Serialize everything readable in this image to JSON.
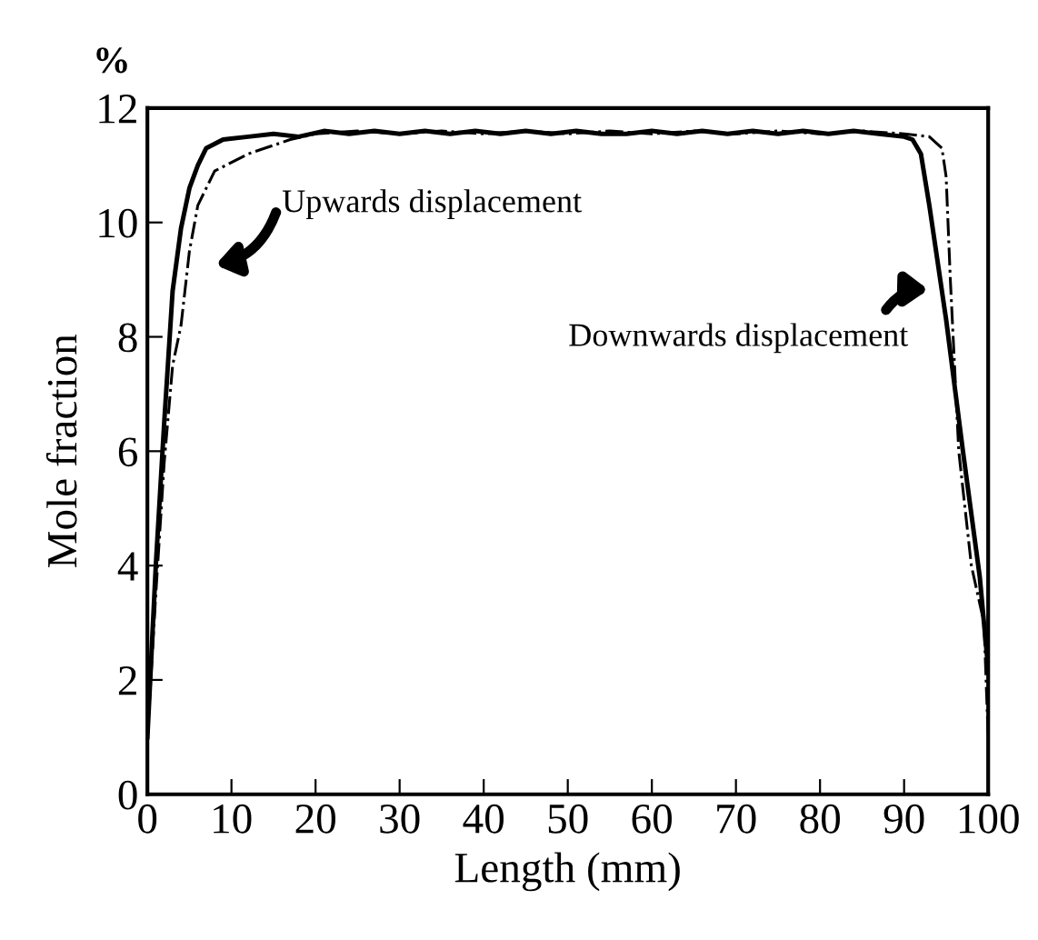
{
  "chart_data": {
    "type": "line",
    "xlabel": "Length (mm)",
    "ylabel": "Mole fraction",
    "xlim": [
      0,
      100
    ],
    "ylim": [
      0,
      12
    ],
    "xticks": [
      0,
      10,
      20,
      30,
      40,
      50,
      60,
      70,
      80,
      90,
      100
    ],
    "yticks": [
      0,
      2,
      4,
      6,
      8,
      10,
      12
    ],
    "grid": false,
    "legend": false,
    "marker": "none",
    "series": [
      {
        "color": "#000000",
        "line_style": "solid",
        "x": [
          0,
          1,
          2,
          3,
          4,
          5,
          6,
          7,
          9,
          12,
          15,
          18,
          21,
          24,
          27,
          30,
          33,
          36,
          39,
          42,
          45,
          48,
          51,
          54,
          57,
          60,
          63,
          66,
          69,
          72,
          75,
          78,
          81,
          84,
          87,
          90,
          91,
          92,
          93,
          95,
          97,
          99,
          100
        ],
        "values": [
          1,
          4,
          6.5,
          8.8,
          9.9,
          10.6,
          11.0,
          11.3,
          11.45,
          11.5,
          11.55,
          11.5,
          11.6,
          11.55,
          11.6,
          11.55,
          11.6,
          11.55,
          11.6,
          11.55,
          11.6,
          11.55,
          11.6,
          11.55,
          11.55,
          11.6,
          11.55,
          11.6,
          11.55,
          11.6,
          11.55,
          11.6,
          11.55,
          11.6,
          11.55,
          11.5,
          11.45,
          11.2,
          10.3,
          8.3,
          6,
          3.8,
          2.2
        ]
      },
      {
        "color": "#000000",
        "line_style": "dashdot",
        "x": [
          0,
          1,
          2,
          3,
          4,
          5,
          6,
          8,
          12,
          17,
          20,
          25,
          30,
          35,
          40,
          45,
          50,
          55,
          60,
          65,
          70,
          75,
          80,
          85,
          90,
          93,
          94.5,
          95,
          95.5,
          96.5,
          98,
          99.5,
          100
        ],
        "values": [
          1,
          3.5,
          5.8,
          7.5,
          8.2,
          9.5,
          10.3,
          10.9,
          11.2,
          11.45,
          11.55,
          11.6,
          11.55,
          11.6,
          11.55,
          11.6,
          11.55,
          11.6,
          11.55,
          11.6,
          11.55,
          11.6,
          11.55,
          11.6,
          11.55,
          11.5,
          11.3,
          10.8,
          9,
          6,
          4,
          3,
          1
        ]
      }
    ],
    "annotations": [
      "%",
      "Upwards displacement",
      "Downwards displacement"
    ]
  }
}
